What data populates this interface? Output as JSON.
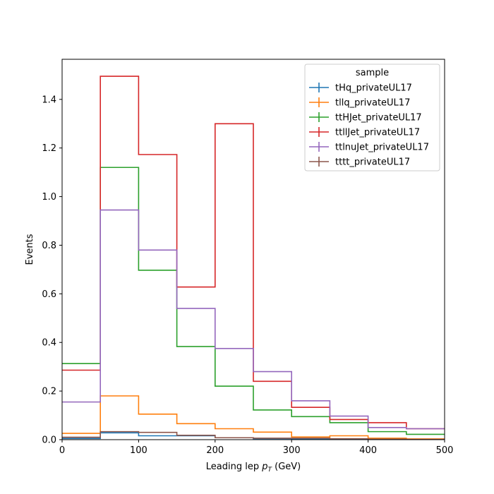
{
  "chart_data": {
    "type": "step",
    "title": "",
    "xlabel_prefix": "Leading lep ",
    "xlabel_var": "p",
    "xlabel_sub": "T",
    "xlabel_suffix": " (GeV)",
    "ylabel": "Events",
    "xlim": [
      0,
      500
    ],
    "ylim": [
      0,
      1.565
    ],
    "x_ticks": [
      0,
      100,
      200,
      300,
      400,
      500
    ],
    "y_ticks": [
      0.0,
      0.2,
      0.4,
      0.6,
      0.8,
      1.0,
      1.2,
      1.4
    ],
    "bin_edges": [
      0,
      50,
      100,
      150,
      200,
      250,
      300,
      350,
      400,
      450,
      500
    ],
    "legend": {
      "title": "sample",
      "position": "upper right"
    },
    "series": [
      {
        "name": "tHq_privateUL17",
        "color": "#1f77b4",
        "values": [
          0.005,
          0.028,
          0.016,
          0.016,
          0.008,
          0.004,
          0.003,
          0.002,
          0.001,
          0.001
        ]
      },
      {
        "name": "tllq_privateUL17",
        "color": "#ff7f0e",
        "values": [
          0.026,
          0.18,
          0.105,
          0.066,
          0.045,
          0.031,
          0.011,
          0.016,
          0.006,
          0.003
        ]
      },
      {
        "name": "ttHJet_privateUL17",
        "color": "#2ca02c",
        "values": [
          0.313,
          1.12,
          0.697,
          0.383,
          0.22,
          0.122,
          0.095,
          0.07,
          0.033,
          0.022
        ]
      },
      {
        "name": "ttllJet_privateUL17",
        "color": "#d62728",
        "values": [
          0.286,
          1.495,
          1.173,
          0.628,
          1.3,
          0.24,
          0.133,
          0.083,
          0.07,
          0.045
        ]
      },
      {
        "name": "ttlnuJet_privateUL17",
        "color": "#9467bd",
        "values": [
          0.155,
          0.945,
          0.78,
          0.54,
          0.375,
          0.28,
          0.16,
          0.097,
          0.05,
          0.045
        ]
      },
      {
        "name": "tttt_privateUL17",
        "color": "#8c564b",
        "values": [
          0.01,
          0.033,
          0.03,
          0.018,
          0.008,
          0.006,
          0.006,
          0.004,
          0.002,
          0.001
        ]
      }
    ]
  }
}
